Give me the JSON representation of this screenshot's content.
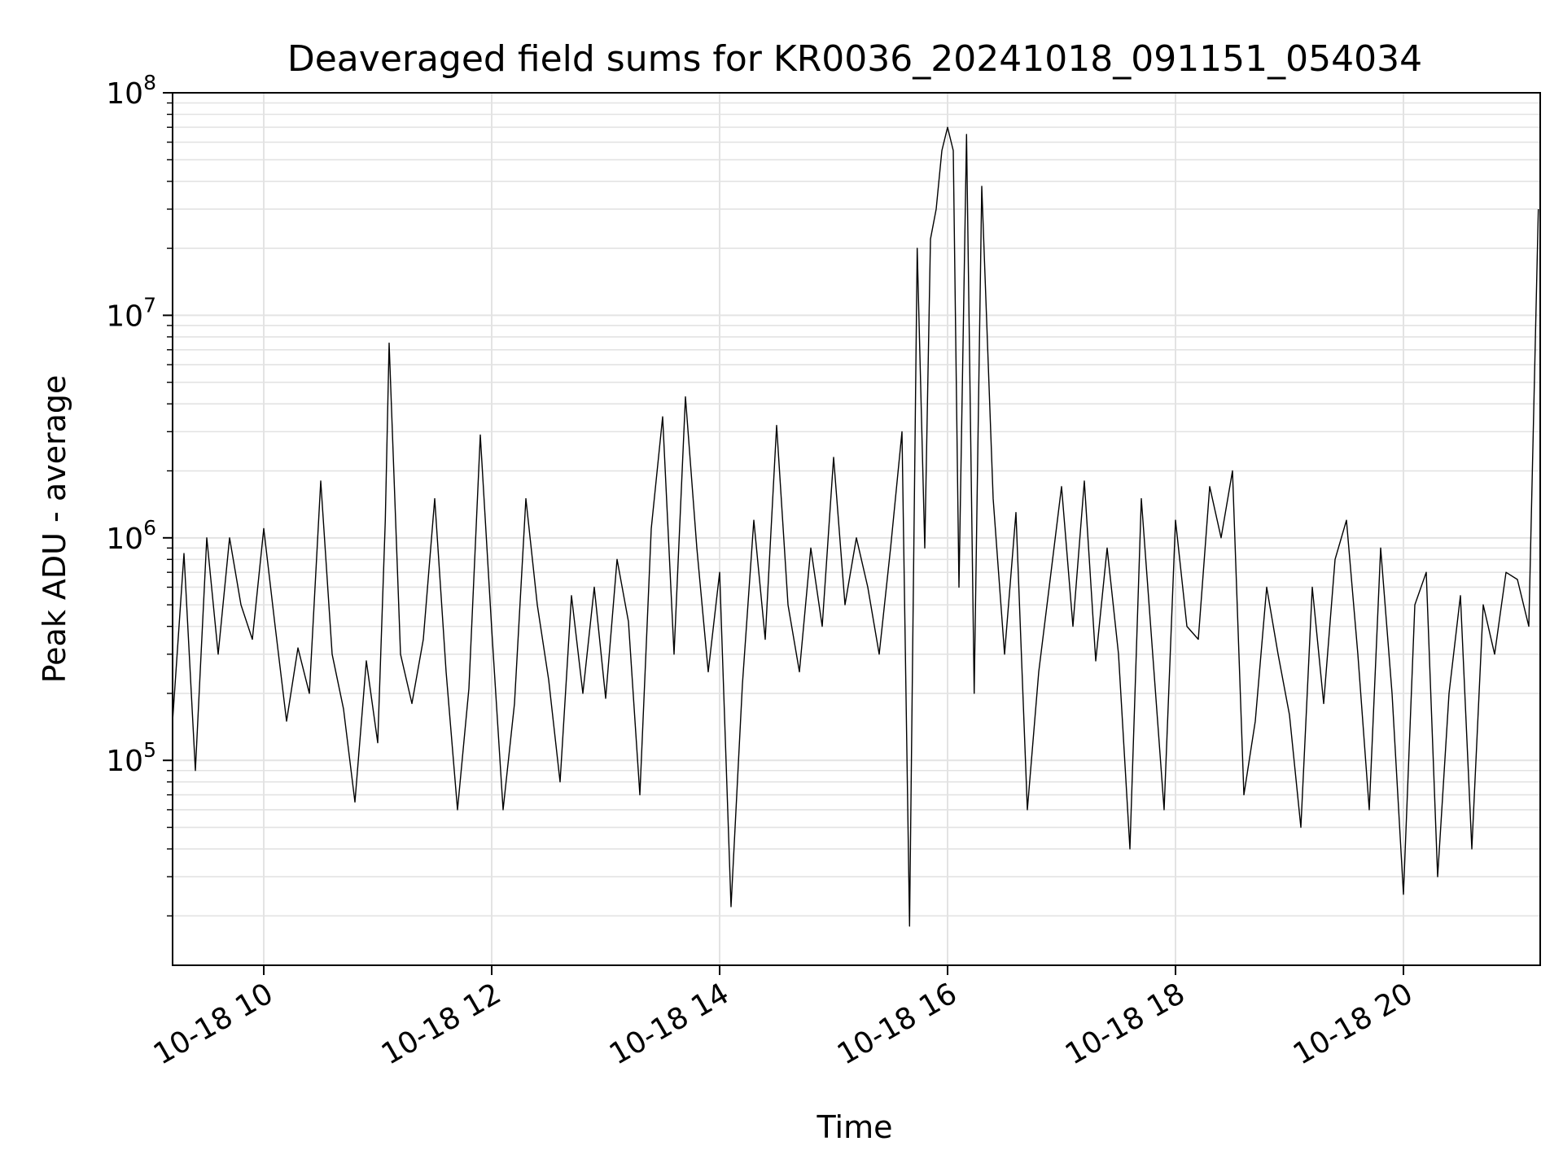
{
  "chart_data": {
    "type": "line",
    "title": "Deaveraged field sums for KR0036_20241018_091151_054034",
    "xlabel": "Time",
    "ylabel": "Peak ADU - average",
    "yscale": "log",
    "ylim": [
      12000,
      100000000
    ],
    "xlim": [
      "2024-10-18 09:12",
      "2024-10-18 21:12"
    ],
    "x_ticks": [
      {
        "label": "10-18 10",
        "value": "2024-10-18 10:00"
      },
      {
        "label": "10-18 12",
        "value": "2024-10-18 12:00"
      },
      {
        "label": "10-18 14",
        "value": "2024-10-18 14:00"
      },
      {
        "label": "10-18 16",
        "value": "2024-10-18 16:00"
      },
      {
        "label": "10-18 18",
        "value": "2024-10-18 18:00"
      },
      {
        "label": "10-18 20",
        "value": "2024-10-18 20:00"
      }
    ],
    "y_ticks": [
      {
        "base": "10",
        "exp": "5",
        "value": 100000
      },
      {
        "base": "10",
        "exp": "6",
        "value": 1000000
      },
      {
        "base": "10",
        "exp": "7",
        "value": 10000000
      },
      {
        "base": "10",
        "exp": "8",
        "value": 100000000
      }
    ],
    "grid": true,
    "line_color": "#000000",
    "series": [
      {
        "x": [
          "2024-10-18 09:12",
          "2024-10-18 09:18",
          "2024-10-18 09:24",
          "2024-10-18 09:30",
          "2024-10-18 09:36",
          "2024-10-18 09:42",
          "2024-10-18 09:48",
          "2024-10-18 09:54",
          "2024-10-18 10:00",
          "2024-10-18 10:06",
          "2024-10-18 10:12",
          "2024-10-18 10:18",
          "2024-10-18 10:24",
          "2024-10-18 10:30",
          "2024-10-18 10:36",
          "2024-10-18 10:42",
          "2024-10-18 10:48",
          "2024-10-18 10:54",
          "2024-10-18 11:00",
          "2024-10-18 11:04",
          "2024-10-18 11:06",
          "2024-10-18 11:12",
          "2024-10-18 11:18",
          "2024-10-18 11:24",
          "2024-10-18 11:30",
          "2024-10-18 11:36",
          "2024-10-18 11:42",
          "2024-10-18 11:48",
          "2024-10-18 11:54",
          "2024-10-18 12:00",
          "2024-10-18 12:06",
          "2024-10-18 12:12",
          "2024-10-18 12:18",
          "2024-10-18 12:24",
          "2024-10-18 12:30",
          "2024-10-18 12:36",
          "2024-10-18 12:42",
          "2024-10-18 12:48",
          "2024-10-18 12:54",
          "2024-10-18 13:00",
          "2024-10-18 13:06",
          "2024-10-18 13:12",
          "2024-10-18 13:18",
          "2024-10-18 13:24",
          "2024-10-18 13:30",
          "2024-10-18 13:36",
          "2024-10-18 13:42",
          "2024-10-18 13:48",
          "2024-10-18 13:54",
          "2024-10-18 14:00",
          "2024-10-18 14:06",
          "2024-10-18 14:12",
          "2024-10-18 14:18",
          "2024-10-18 14:24",
          "2024-10-18 14:30",
          "2024-10-18 14:36",
          "2024-10-18 14:42",
          "2024-10-18 14:48",
          "2024-10-18 14:54",
          "2024-10-18 15:00",
          "2024-10-18 15:06",
          "2024-10-18 15:12",
          "2024-10-18 15:18",
          "2024-10-18 15:24",
          "2024-10-18 15:30",
          "2024-10-18 15:36",
          "2024-10-18 15:40",
          "2024-10-18 15:44",
          "2024-10-18 15:48",
          "2024-10-18 15:51",
          "2024-10-18 15:54",
          "2024-10-18 15:57",
          "2024-10-18 16:00",
          "2024-10-18 16:03",
          "2024-10-18 16:06",
          "2024-10-18 16:10",
          "2024-10-18 16:14",
          "2024-10-18 16:18",
          "2024-10-18 16:24",
          "2024-10-18 16:30",
          "2024-10-18 16:36",
          "2024-10-18 16:42",
          "2024-10-18 16:48",
          "2024-10-18 16:54",
          "2024-10-18 17:00",
          "2024-10-18 17:06",
          "2024-10-18 17:12",
          "2024-10-18 17:18",
          "2024-10-18 17:24",
          "2024-10-18 17:30",
          "2024-10-18 17:36",
          "2024-10-18 17:42",
          "2024-10-18 17:48",
          "2024-10-18 17:54",
          "2024-10-18 18:00",
          "2024-10-18 18:06",
          "2024-10-18 18:12",
          "2024-10-18 18:18",
          "2024-10-18 18:24",
          "2024-10-18 18:30",
          "2024-10-18 18:36",
          "2024-10-18 18:42",
          "2024-10-18 18:48",
          "2024-10-18 18:54",
          "2024-10-18 19:00",
          "2024-10-18 19:06",
          "2024-10-18 19:12",
          "2024-10-18 19:18",
          "2024-10-18 19:24",
          "2024-10-18 19:30",
          "2024-10-18 19:36",
          "2024-10-18 19:42",
          "2024-10-18 19:48",
          "2024-10-18 19:54",
          "2024-10-18 20:00",
          "2024-10-18 20:06",
          "2024-10-18 20:12",
          "2024-10-18 20:18",
          "2024-10-18 20:24",
          "2024-10-18 20:30",
          "2024-10-18 20:36",
          "2024-10-18 20:42",
          "2024-10-18 20:48",
          "2024-10-18 20:54",
          "2024-10-18 21:00",
          "2024-10-18 21:06",
          "2024-10-18 21:11"
        ],
        "y": [
          150000,
          850000,
          90000,
          1000000,
          300000,
          1000000,
          500000,
          350000,
          1100000,
          400000,
          150000,
          320000,
          200000,
          1800000,
          300000,
          170000,
          65000,
          280000,
          120000,
          1200000,
          7500000,
          300000,
          180000,
          350000,
          1500000,
          250000,
          60000,
          210000,
          2900000,
          390000,
          60000,
          180000,
          1500000,
          500000,
          230000,
          80000,
          550000,
          200000,
          600000,
          190000,
          800000,
          420000,
          70000,
          1100000,
          3500000,
          300000,
          4300000,
          900000,
          250000,
          700000,
          22000,
          220000,
          1200000,
          350000,
          3200000,
          500000,
          250000,
          900000,
          400000,
          2300000,
          500000,
          1000000,
          600000,
          300000,
          900000,
          3000000,
          18000,
          20000000,
          900000,
          22000000,
          30000000,
          55000000,
          70000000,
          55000000,
          600000,
          65000000,
          200000,
          38000000,
          1500000,
          300000,
          1300000,
          60000,
          250000,
          650000,
          1700000,
          400000,
          1800000,
          280000,
          900000,
          300000,
          40000,
          1500000,
          300000,
          60000,
          1200000,
          400000,
          350000,
          1700000,
          1000000,
          2000000,
          70000,
          150000,
          600000,
          300000,
          160000,
          50000,
          600000,
          180000,
          800000,
          1200000,
          300000,
          60000,
          900000,
          200000,
          25000,
          500000,
          700000,
          30000,
          200000,
          550000,
          40000,
          500000,
          300000,
          700000,
          650000,
          400000,
          30000000
        ]
      }
    ]
  }
}
